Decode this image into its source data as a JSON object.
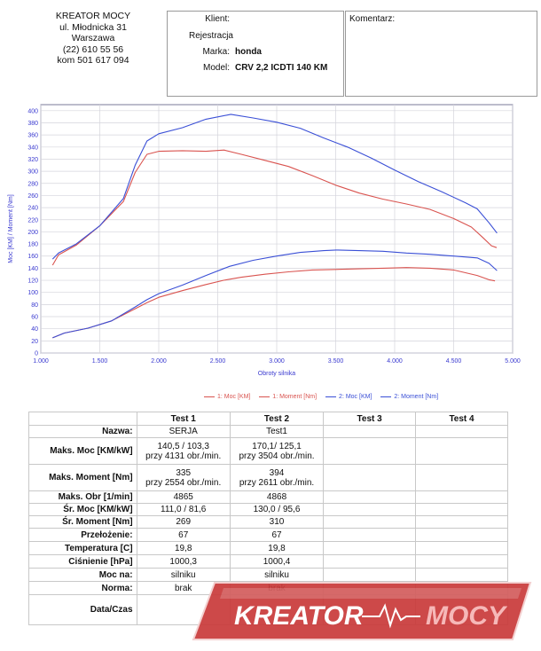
{
  "header": {
    "company_lines": [
      "KREATOR MOCY",
      "ul. Młodnicka 31",
      "Warszawa",
      "(22) 610 55 56",
      "kom 501 617 094"
    ],
    "fields": [
      {
        "label": "Klient:",
        "value": ""
      },
      {
        "label": "Rejestracja",
        "value": ""
      },
      {
        "label": "Marka:",
        "value": "honda"
      },
      {
        "label": "Model:",
        "value": "CRV 2,2 ICDTI 140 KM"
      }
    ],
    "comment_label": "Komentarz:"
  },
  "chart_data": {
    "type": "line",
    "xlabel": "Obroty silnika",
    "ylabel": "Moc [KM] / Moment [Nm]",
    "xlim": [
      1000,
      5000
    ],
    "ylim": [
      0,
      410
    ],
    "x_ticks": [
      1000,
      1500,
      2000,
      2500,
      3000,
      3500,
      4000,
      4500,
      5000
    ],
    "x_tick_labels": [
      "1.000",
      "1.500",
      "2.000",
      "2.500",
      "3.000",
      "3.500",
      "4.000",
      "4.500",
      "5.000"
    ],
    "y_ticks": [
      0,
      20,
      40,
      60,
      80,
      100,
      120,
      140,
      160,
      180,
      200,
      220,
      240,
      260,
      280,
      300,
      320,
      340,
      360,
      380,
      400
    ],
    "grid": true,
    "legend_position": "bottom",
    "series": [
      {
        "name": "1: Moc [KM]",
        "color": "#d9534f",
        "x": [
          1100,
          1200,
          1400,
          1600,
          1800,
          1900,
          2000,
          2200,
          2400,
          2550,
          2700,
          2900,
          3100,
          3300,
          3500,
          3700,
          3900,
          4100,
          4300,
          4500,
          4700,
          4800,
          4850
        ],
        "y": [
          25,
          33,
          41,
          53,
          73,
          83,
          92,
          103,
          113,
          120,
          125,
          130,
          134,
          137,
          138,
          139,
          140,
          141,
          140,
          137,
          128,
          121,
          119
        ]
      },
      {
        "name": "1: Moment [Nm]",
        "color": "#d9534f",
        "x": [
          1100,
          1150,
          1300,
          1500,
          1700,
          1800,
          1900,
          2000,
          2200,
          2400,
          2554,
          2700,
          2900,
          3100,
          3300,
          3500,
          3700,
          3900,
          4100,
          4300,
          4500,
          4650,
          4750,
          4820,
          4865
        ],
        "y": [
          145,
          162,
          178,
          210,
          250,
          298,
          328,
          333,
          334,
          333,
          335,
          328,
          318,
          308,
          293,
          277,
          264,
          254,
          246,
          237,
          222,
          208,
          190,
          177,
          174
        ]
      },
      {
        "name": "2: Moc [KM]",
        "color": "#3a4fd6",
        "x": [
          1100,
          1200,
          1400,
          1600,
          1800,
          1900,
          2000,
          2200,
          2400,
          2600,
          2800,
          3000,
          3200,
          3400,
          3504,
          3700,
          3900,
          4100,
          4300,
          4500,
          4700,
          4800,
          4868
        ],
        "y": [
          25,
          33,
          41,
          53,
          76,
          88,
          98,
          112,
          128,
          143,
          153,
          160,
          166,
          169,
          170,
          169,
          168,
          165,
          163,
          160,
          157,
          148,
          136
        ]
      },
      {
        "name": "2: Moment [Nm]",
        "color": "#3a4fd6",
        "x": [
          1100,
          1150,
          1300,
          1500,
          1700,
          1800,
          1900,
          2000,
          2200,
          2400,
          2611,
          2800,
          3000,
          3200,
          3400,
          3600,
          3800,
          4000,
          4200,
          4400,
          4600,
          4700,
          4800,
          4868
        ],
        "y": [
          155,
          165,
          180,
          210,
          255,
          310,
          350,
          362,
          372,
          386,
          394,
          388,
          381,
          371,
          355,
          340,
          322,
          302,
          283,
          266,
          248,
          238,
          215,
          198
        ]
      }
    ]
  },
  "table": {
    "headers": [
      "",
      "Test 1",
      "Test 2",
      "Test 3",
      "Test 4"
    ],
    "rows": [
      {
        "label": "Nazwa:",
        "t1": "SERJA",
        "t2": "Test1"
      },
      {
        "label": "Maks. Moc [KM/kW]",
        "t1": "140,5 / 103,3",
        "t1b": "przy 4131 obr./min.",
        "t2": "170,1/ 125,1",
        "t2b": "przy 3504 obr./min."
      },
      {
        "label": "Maks. Moment [Nm]",
        "t1": "335",
        "t1b": "przy 2554 obr./min.",
        "t2": "394",
        "t2b": "przy 2611 obr./min."
      },
      {
        "label": "Maks. Obr [1/min]",
        "t1": "4865",
        "t2": "4868"
      },
      {
        "label": "Śr. Moc [KM/kW]",
        "t1": "111,0 / 81,6",
        "t2": "130,0 / 95,6"
      },
      {
        "label": "Śr. Moment [Nm]",
        "t1": "269",
        "t2": "310"
      },
      {
        "label": "Przełożenie:",
        "t1": "67",
        "t2": "67"
      },
      {
        "label": "Temperatura [C]",
        "t1": "19,8",
        "t2": "19,8"
      },
      {
        "label": "Ciśnienie [hPa]",
        "t1": "1000,3",
        "t2": "1000,4"
      },
      {
        "label": "Moc na:",
        "t1": "silniku",
        "t2": "silniku"
      },
      {
        "label": "Norma:",
        "t1": "brak",
        "t2": "brak"
      },
      {
        "label": "Data/Czas",
        "t1": "",
        "t2": ""
      }
    ]
  },
  "logo": {
    "text_part1": "KREATOR",
    "text_part2": "MOCY",
    "colors": {
      "fill": "#c93a3a",
      "text": "#ffffff"
    }
  }
}
